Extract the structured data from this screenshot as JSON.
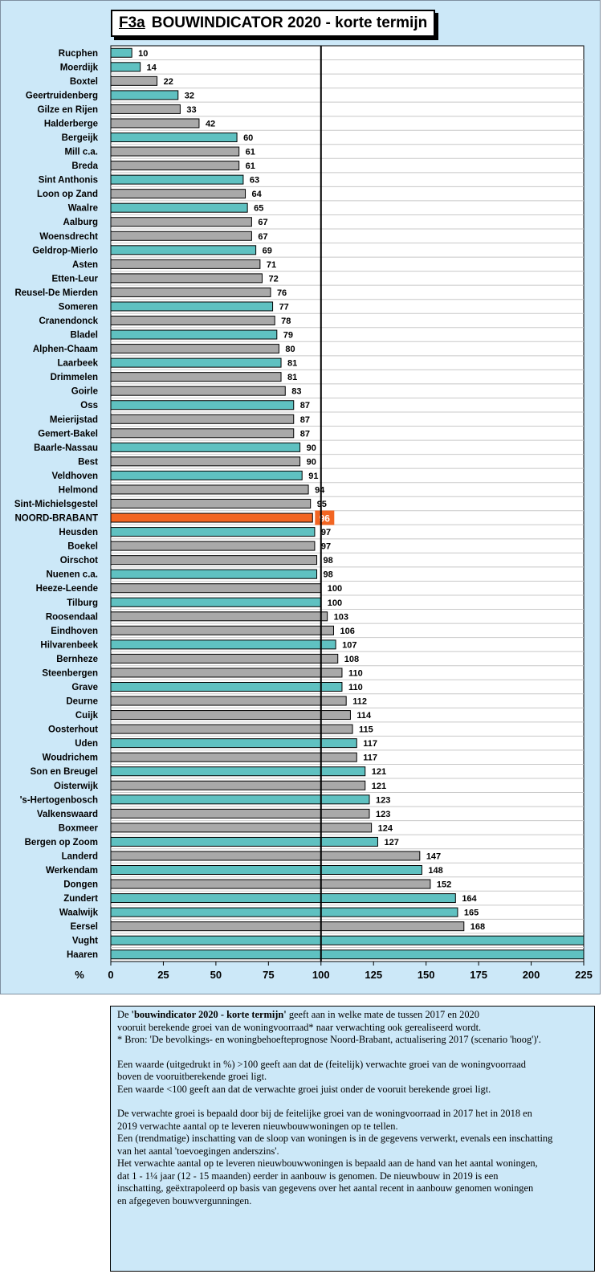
{
  "title": {
    "code": "F3a",
    "text": "BOUWINDICATOR 2020 - korte termijn"
  },
  "chart_data": {
    "type": "bar",
    "orientation": "horizontal",
    "xlabel": "%",
    "xlim": [
      0,
      225
    ],
    "xticks": [
      0,
      25,
      50,
      75,
      100,
      125,
      150,
      175,
      200,
      225
    ],
    "reference_line": 100,
    "grid": true,
    "highlight_category": "NOORD-BRABANT",
    "colors": {
      "teal": "#5fc1c1",
      "gray": "#a9a9a9",
      "highlight": "#f26522",
      "background": "#cce8f8"
    },
    "categories": [
      "Rucphen",
      "Moerdijk",
      "Boxtel",
      "Geertruidenberg",
      "Gilze en Rijen",
      "Halderberge",
      "Bergeijk",
      "Mill c.a.",
      "Breda",
      "Sint Anthonis",
      "Loon op Zand",
      "Waalre",
      "Aalburg",
      "Woensdrecht",
      "Geldrop-Mierlo",
      "Asten",
      "Etten-Leur",
      "Reusel-De Mierden",
      "Someren",
      "Cranendonck",
      "Bladel",
      "Alphen-Chaam",
      "Laarbeek",
      "Drimmelen",
      "Goirle",
      "Oss",
      "Meierijstad",
      "Gemert-Bakel",
      "Baarle-Nassau",
      "Best",
      "Veldhoven",
      "Helmond",
      "Sint-Michielsgestel",
      "NOORD-BRABANT",
      "Heusden",
      "Boekel",
      "Oirschot",
      "Nuenen c.a.",
      "Heeze-Leende",
      "Tilburg",
      "Roosendaal",
      "Eindhoven",
      "Hilvarenbeek",
      "Bernheze",
      "Steenbergen",
      "Grave",
      "Deurne",
      "Cuijk",
      "Oosterhout",
      "Uden",
      "Woudrichem",
      "Son en Breugel",
      "Oisterwijk",
      "'s-Hertogenbosch",
      "Valkenswaard",
      "Boxmeer",
      "Bergen op Zoom",
      "Landerd",
      "Werkendam",
      "Dongen",
      "Zundert",
      "Waalwijk",
      "Eersel",
      "Vught",
      "Haaren"
    ],
    "values": [
      10,
      14,
      22,
      32,
      33,
      42,
      60,
      61,
      61,
      63,
      64,
      65,
      67,
      67,
      69,
      71,
      72,
      76,
      77,
      78,
      79,
      80,
      81,
      81,
      83,
      87,
      87,
      87,
      90,
      90,
      91,
      94,
      95,
      96,
      97,
      97,
      98,
      98,
      100,
      100,
      103,
      106,
      107,
      108,
      110,
      110,
      112,
      114,
      115,
      117,
      117,
      121,
      121,
      123,
      123,
      124,
      127,
      147,
      148,
      152,
      164,
      165,
      168,
      225,
      225
    ],
    "value_labels": [
      "10",
      "14",
      "22",
      "32",
      "33",
      "42",
      "60",
      "61",
      "61",
      "63",
      "64",
      "65",
      "67",
      "67",
      "69",
      "71",
      "72",
      "76",
      "77",
      "78",
      "79",
      "80",
      "81",
      "81",
      "83",
      "87",
      "87",
      "87",
      "90",
      "90",
      "91",
      "94",
      "95",
      "96",
      "97",
      "97",
      "98",
      "98",
      "100",
      "100",
      "103",
      "106",
      "107",
      "108",
      "110",
      "110",
      "112",
      "114",
      "115",
      "117",
      "117",
      "121",
      "121",
      "123",
      "123",
      "124",
      "127",
      "147",
      "148",
      "152",
      "164",
      "165",
      "168",
      "",
      ""
    ],
    "bar_colors": [
      "teal",
      "teal",
      "gray",
      "teal",
      "gray",
      "gray",
      "teal",
      "gray",
      "gray",
      "teal",
      "gray",
      "teal",
      "gray",
      "gray",
      "teal",
      "gray",
      "gray",
      "gray",
      "teal",
      "gray",
      "teal",
      "gray",
      "teal",
      "gray",
      "gray",
      "teal",
      "gray",
      "gray",
      "teal",
      "gray",
      "teal",
      "gray",
      "gray",
      "highlight",
      "teal",
      "gray",
      "gray",
      "teal",
      "gray",
      "teal",
      "gray",
      "gray",
      "teal",
      "gray",
      "gray",
      "teal",
      "gray",
      "gray",
      "gray",
      "teal",
      "gray",
      "teal",
      "gray",
      "teal",
      "gray",
      "gray",
      "teal",
      "gray",
      "teal",
      "gray",
      "teal",
      "teal",
      "gray",
      "teal",
      "teal"
    ]
  },
  "notes": [
    {
      "segments": [
        {
          "text": "De "
        },
        {
          "text": "'bouwindicator 2020 - korte termijn'",
          "bold": true
        },
        {
          "text": " geeft aan in welke mate de tussen 2017 en 2020"
        }
      ]
    },
    {
      "segments": [
        {
          "text": " vooruit berekende groei van de woningvoorraad* naar verwachting ook gerealiseerd wordt."
        }
      ]
    },
    {
      "segments": [
        {
          "text": "* Bron: 'De bevolkings- en woningbehoefteprognose Noord-Brabant, actualisering 2017 (scenario 'hoog')'."
        }
      ]
    },
    {
      "gap": true
    },
    {
      "segments": [
        {
          "text": "Een waarde (uitgedrukt in %) >100 geeft aan dat de (feitelijk) verwachte groei van de woningvoorraad"
        }
      ]
    },
    {
      "segments": [
        {
          "text": "boven de vooruitberekende groei ligt."
        }
      ]
    },
    {
      "segments": [
        {
          "text": "Een waarde <100 geeft aan dat de verwachte groei juist onder de vooruit berekende groei ligt."
        }
      ]
    },
    {
      "gap": true
    },
    {
      "segments": [
        {
          "text": "De verwachte groei is bepaald door bij de feitelijke groei van de woningvoorraad in 2017 het in 2018 en"
        }
      ]
    },
    {
      "segments": [
        {
          "text": "2019 verwachte aantal op te leveren nieuwbouwwoningen op te tellen."
        }
      ]
    },
    {
      "segments": [
        {
          "text": "Een (trendmatige) inschatting van de sloop van woningen is in de gegevens verwerkt, evenals een inschatting"
        }
      ]
    },
    {
      "segments": [
        {
          "text": "van het aantal 'toevoegingen anderszins'."
        }
      ]
    },
    {
      "segments": [
        {
          "text": "Het verwachte aantal op te leveren nieuwbouwwoningen is bepaald aan de hand van het aantal woningen,"
        }
      ]
    },
    {
      "segments": [
        {
          "text": "dat 1 - 1¼ jaar (12 - 15 maanden) eerder in aanbouw is genomen. De nieuwbouw in 2019 is een"
        }
      ]
    },
    {
      "segments": [
        {
          "text": "inschatting, geëxtrapoleerd op basis van gegevens over het aantal recent in aanbouw genomen woningen"
        }
      ]
    },
    {
      "segments": [
        {
          "text": "en afgegeven bouwvergunningen."
        }
      ]
    }
  ]
}
